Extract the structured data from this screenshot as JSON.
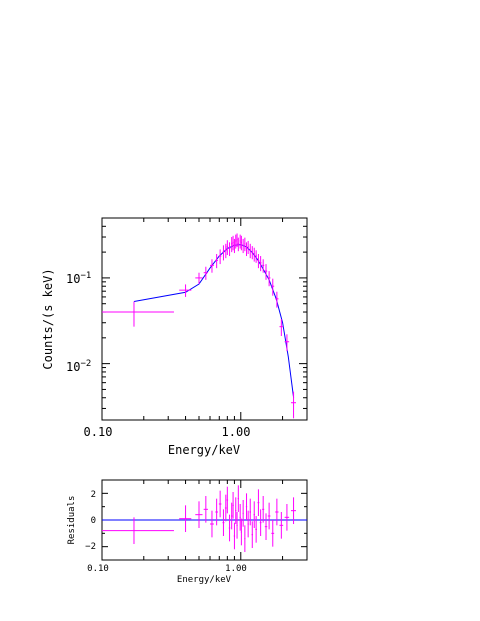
{
  "colors": {
    "data": "#ff00ff",
    "model": "#0000ff",
    "axes": "#000000"
  },
  "chart_data": [
    {
      "type": "scatter",
      "xlabel": "Energy/keV",
      "ylabel": "Counts/(s keV)",
      "xscale": "log",
      "yscale": "log",
      "xlim": [
        0.1,
        3.0
      ],
      "ylim": [
        0.0022,
        0.5
      ],
      "xticklabels": [
        "0.10",
        "1.00"
      ],
      "yticklabels": [
        {
          "m": "10",
          "e": "−1"
        },
        {
          "m": "10",
          "e": "−2"
        }
      ],
      "series": [
        {
          "style": "errorbar",
          "x": [
            0.17,
            0.4,
            0.5,
            0.56,
            0.62,
            0.67,
            0.71,
            0.75,
            0.78,
            0.8,
            0.83,
            0.86,
            0.88,
            0.9,
            0.92,
            0.94,
            0.96,
            0.99,
            1.01,
            1.04,
            1.07,
            1.1,
            1.13,
            1.17,
            1.21,
            1.25,
            1.29,
            1.34,
            1.39,
            1.45,
            1.52,
            1.6,
            1.7,
            1.82,
            1.96,
            2.15,
            2.4
          ],
          "y": [
            0.04,
            0.072,
            0.1,
            0.115,
            0.14,
            0.16,
            0.18,
            0.2,
            0.21,
            0.23,
            0.22,
            0.25,
            0.26,
            0.24,
            0.27,
            0.28,
            0.25,
            0.27,
            0.26,
            0.24,
            0.25,
            0.22,
            0.23,
            0.21,
            0.2,
            0.19,
            0.18,
            0.16,
            0.15,
            0.14,
            0.12,
            0.1,
            0.08,
            0.057,
            0.027,
            0.018,
            0.0035
          ],
          "xerr_low": [
            0.07,
            0.04,
            0.03,
            0.02,
            0.02,
            0.015,
            0.015,
            0.012,
            0.012,
            0.01,
            0.01,
            0.01,
            0.01,
            0.01,
            0.01,
            0.01,
            0.01,
            0.01,
            0.01,
            0.01,
            0.01,
            0.012,
            0.012,
            0.015,
            0.015,
            0.015,
            0.018,
            0.02,
            0.02,
            0.025,
            0.03,
            0.035,
            0.04,
            0.05,
            0.06,
            0.08,
            0.1
          ],
          "xerr_high": [
            0.16,
            0.04,
            0.03,
            0.02,
            0.02,
            0.015,
            0.015,
            0.012,
            0.012,
            0.01,
            0.01,
            0.01,
            0.01,
            0.01,
            0.01,
            0.01,
            0.01,
            0.01,
            0.01,
            0.01,
            0.01,
            0.012,
            0.012,
            0.015,
            0.015,
            0.015,
            0.018,
            0.02,
            0.02,
            0.025,
            0.03,
            0.035,
            0.04,
            0.05,
            0.06,
            0.08,
            0.1
          ],
          "yerr_low": [
            0.013,
            0.012,
            0.015,
            0.02,
            0.025,
            0.03,
            0.035,
            0.04,
            0.04,
            0.045,
            0.04,
            0.05,
            0.05,
            0.045,
            0.05,
            0.05,
            0.045,
            0.05,
            0.05,
            0.045,
            0.045,
            0.04,
            0.04,
            0.04,
            0.035,
            0.035,
            0.03,
            0.03,
            0.03,
            0.025,
            0.025,
            0.02,
            0.018,
            0.012,
            0.006,
            0.004,
            0.0012
          ],
          "yerr_high": [
            0.013,
            0.012,
            0.015,
            0.02,
            0.025,
            0.03,
            0.035,
            0.04,
            0.04,
            0.045,
            0.04,
            0.05,
            0.05,
            0.045,
            0.05,
            0.05,
            0.045,
            0.05,
            0.05,
            0.045,
            0.045,
            0.04,
            0.04,
            0.04,
            0.035,
            0.035,
            0.03,
            0.03,
            0.03,
            0.025,
            0.025,
            0.02,
            0.018,
            0.012,
            0.006,
            0.004,
            0.0012
          ]
        },
        {
          "style": "line",
          "x": [
            0.17,
            0.4,
            0.5,
            0.6,
            0.7,
            0.8,
            0.9,
            1.0,
            1.1,
            1.2,
            1.3,
            1.4,
            1.6,
            1.8,
            2.0,
            2.2,
            2.4
          ],
          "y": [
            0.053,
            0.068,
            0.085,
            0.13,
            0.18,
            0.22,
            0.24,
            0.245,
            0.23,
            0.2,
            0.17,
            0.14,
            0.095,
            0.057,
            0.03,
            0.012,
            0.004
          ]
        }
      ]
    },
    {
      "type": "scatter",
      "xlabel": "Energy/keV",
      "ylabel": "Residuals",
      "xscale": "log",
      "xlim": [
        0.1,
        3.0
      ],
      "ylim": [
        -3,
        3
      ],
      "xticklabels": [
        "0.10",
        "1.00"
      ],
      "yticklabels": [
        "2",
        "0",
        "−2"
      ],
      "series": [
        {
          "style": "errorbar",
          "x": [
            0.17,
            0.4,
            0.5,
            0.56,
            0.62,
            0.67,
            0.71,
            0.75,
            0.78,
            0.8,
            0.83,
            0.86,
            0.88,
            0.9,
            0.92,
            0.94,
            0.96,
            0.99,
            1.01,
            1.04,
            1.07,
            1.1,
            1.13,
            1.17,
            1.21,
            1.25,
            1.29,
            1.34,
            1.39,
            1.45,
            1.52,
            1.6,
            1.7,
            1.82,
            1.96,
            2.15,
            2.4
          ],
          "y": [
            -0.8,
            0.1,
            0.4,
            0.8,
            -0.3,
            0.6,
            1.2,
            -0.2,
            0.9,
            1.5,
            -0.6,
            0.3,
            1.1,
            -1.2,
            0.7,
            -0.4,
            1.6,
            0.2,
            -0.9,
            0.5,
            -1.4,
            1.0,
            -0.3,
            0.6,
            -1.1,
            0.4,
            -0.7,
            1.3,
            -0.2,
            0.8,
            -0.5,
            0.3,
            -1.0,
            0.6,
            -0.4,
            0.2,
            0.7
          ],
          "yerr_low": [
            1.0,
            1.0,
            1.0,
            1.0,
            1.0,
            1.0,
            1.0,
            1.0,
            1.0,
            1.0,
            1.0,
            1.0,
            1.0,
            1.0,
            1.0,
            1.0,
            1.0,
            1.0,
            1.0,
            1.0,
            1.0,
            1.0,
            1.0,
            1.0,
            1.0,
            1.0,
            1.0,
            1.0,
            1.0,
            1.0,
            1.0,
            1.0,
            1.0,
            1.0,
            1.0,
            1.0,
            1.0
          ],
          "yerr_high": [
            1.0,
            1.0,
            1.0,
            1.0,
            1.0,
            1.0,
            1.0,
            1.0,
            1.0,
            1.0,
            1.0,
            1.0,
            1.0,
            1.0,
            1.0,
            1.0,
            1.0,
            1.0,
            1.0,
            1.0,
            1.0,
            1.0,
            1.0,
            1.0,
            1.0,
            1.0,
            1.0,
            1.0,
            1.0,
            1.0,
            1.0,
            1.0,
            1.0,
            1.0,
            1.0,
            1.0,
            1.0
          ]
        },
        {
          "style": "line",
          "x": [
            0.1,
            3.0
          ],
          "y": [
            0,
            0
          ]
        }
      ]
    }
  ]
}
